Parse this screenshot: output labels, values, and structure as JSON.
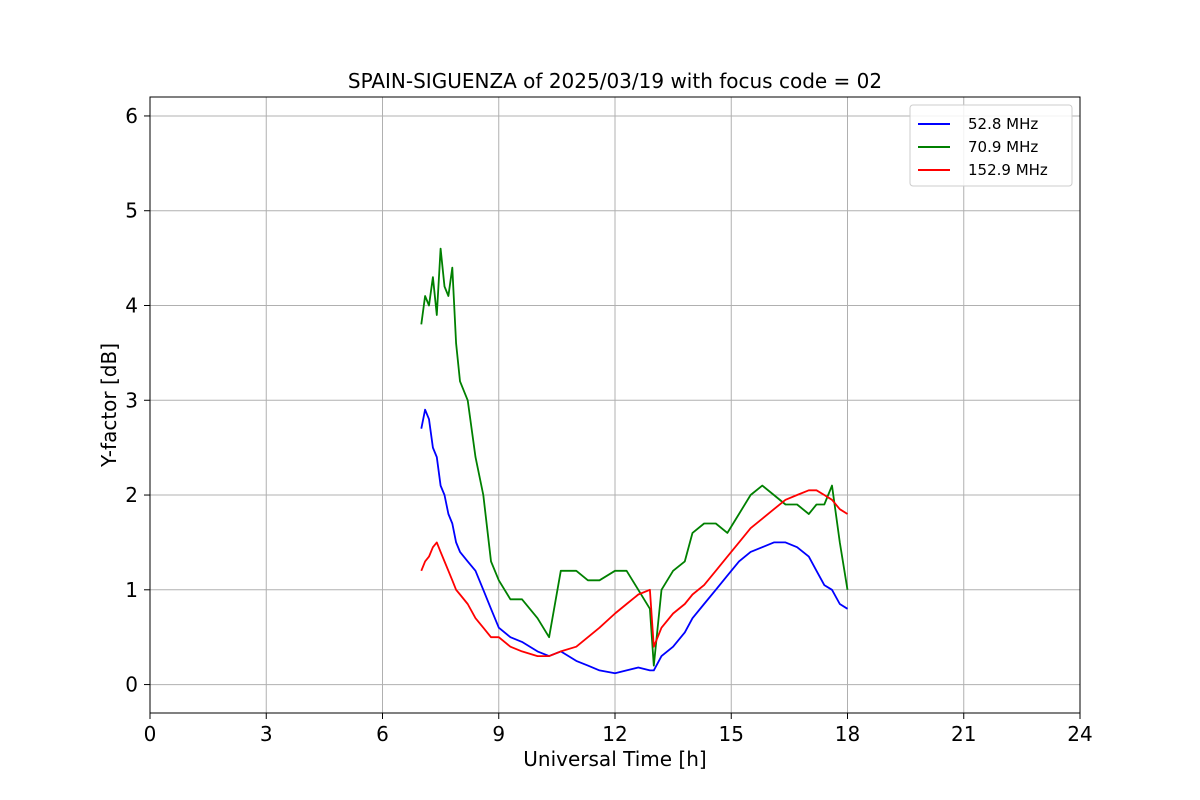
{
  "chart_data": {
    "type": "line",
    "title": "SPAIN-SIGUENZA of 2025/03/19 with focus code = 02",
    "xlabel": "Universal Time [h]",
    "ylabel": "Y-factor [dB]",
    "xlim": [
      0,
      24
    ],
    "ylim": [
      -0.3,
      6.2
    ],
    "xticks": [
      0,
      3,
      6,
      9,
      12,
      15,
      18,
      21,
      24
    ],
    "yticks": [
      0,
      1,
      2,
      3,
      4,
      5,
      6
    ],
    "grid": true,
    "legend_position": "top-right",
    "series": [
      {
        "name": "52.8 MHz",
        "color": "#0000ff",
        "x": [
          7.0,
          7.1,
          7.2,
          7.3,
          7.4,
          7.5,
          7.6,
          7.7,
          7.8,
          7.9,
          8.0,
          8.2,
          8.4,
          8.6,
          8.8,
          9.0,
          9.3,
          9.6,
          10.0,
          10.3,
          10.6,
          11.0,
          11.3,
          11.6,
          12.0,
          12.3,
          12.6,
          12.9,
          13.0,
          13.2,
          13.5,
          13.8,
          14.0,
          14.3,
          14.6,
          14.9,
          15.2,
          15.5,
          15.8,
          16.1,
          16.4,
          16.7,
          17.0,
          17.2,
          17.4,
          17.6,
          17.8,
          18.0
        ],
        "y": [
          2.7,
          2.9,
          2.8,
          2.5,
          2.4,
          2.1,
          2.0,
          1.8,
          1.7,
          1.5,
          1.4,
          1.3,
          1.2,
          1.0,
          0.8,
          0.6,
          0.5,
          0.45,
          0.35,
          0.3,
          0.35,
          0.25,
          0.2,
          0.15,
          0.12,
          0.15,
          0.18,
          0.15,
          0.15,
          0.3,
          0.4,
          0.55,
          0.7,
          0.85,
          1.0,
          1.15,
          1.3,
          1.4,
          1.45,
          1.5,
          1.5,
          1.45,
          1.35,
          1.2,
          1.05,
          1.0,
          0.85,
          0.8
        ]
      },
      {
        "name": "70.9 MHz",
        "color": "#008000",
        "x": [
          7.0,
          7.1,
          7.2,
          7.3,
          7.4,
          7.5,
          7.6,
          7.7,
          7.8,
          7.9,
          8.0,
          8.2,
          8.4,
          8.6,
          8.8,
          9.0,
          9.3,
          9.6,
          10.0,
          10.3,
          10.6,
          11.0,
          11.3,
          11.6,
          12.0,
          12.3,
          12.6,
          12.9,
          13.0,
          13.2,
          13.5,
          13.8,
          14.0,
          14.3,
          14.6,
          14.9,
          15.2,
          15.5,
          15.8,
          16.1,
          16.4,
          16.7,
          17.0,
          17.2,
          17.4,
          17.6,
          17.8,
          18.0
        ],
        "y": [
          3.8,
          4.1,
          4.0,
          4.3,
          3.9,
          4.6,
          4.2,
          4.1,
          4.4,
          3.6,
          3.2,
          3.0,
          2.4,
          2.0,
          1.3,
          1.1,
          0.9,
          0.9,
          0.7,
          0.5,
          1.2,
          1.2,
          1.1,
          1.1,
          1.2,
          1.2,
          1.0,
          0.8,
          0.2,
          1.0,
          1.2,
          1.3,
          1.6,
          1.7,
          1.7,
          1.6,
          1.8,
          2.0,
          2.1,
          2.0,
          1.9,
          1.9,
          1.8,
          1.9,
          1.9,
          2.1,
          1.5,
          1.0
        ]
      },
      {
        "name": "152.9 MHz",
        "color": "#ff0000",
        "x": [
          7.0,
          7.1,
          7.2,
          7.3,
          7.4,
          7.5,
          7.6,
          7.7,
          7.8,
          7.9,
          8.0,
          8.2,
          8.4,
          8.6,
          8.8,
          9.0,
          9.3,
          9.6,
          10.0,
          10.3,
          10.6,
          11.0,
          11.3,
          11.6,
          12.0,
          12.3,
          12.6,
          12.9,
          13.0,
          13.2,
          13.5,
          13.8,
          14.0,
          14.3,
          14.6,
          14.9,
          15.2,
          15.5,
          15.8,
          16.1,
          16.4,
          16.7,
          17.0,
          17.2,
          17.4,
          17.6,
          17.8,
          18.0
        ],
        "y": [
          1.2,
          1.3,
          1.35,
          1.45,
          1.5,
          1.4,
          1.3,
          1.2,
          1.1,
          1.0,
          0.95,
          0.85,
          0.7,
          0.6,
          0.5,
          0.5,
          0.4,
          0.35,
          0.3,
          0.3,
          0.35,
          0.4,
          0.5,
          0.6,
          0.75,
          0.85,
          0.95,
          1.0,
          0.4,
          0.6,
          0.75,
          0.85,
          0.95,
          1.05,
          1.2,
          1.35,
          1.5,
          1.65,
          1.75,
          1.85,
          1.95,
          2.0,
          2.05,
          2.05,
          2.0,
          1.95,
          1.85,
          1.8
        ]
      }
    ]
  }
}
